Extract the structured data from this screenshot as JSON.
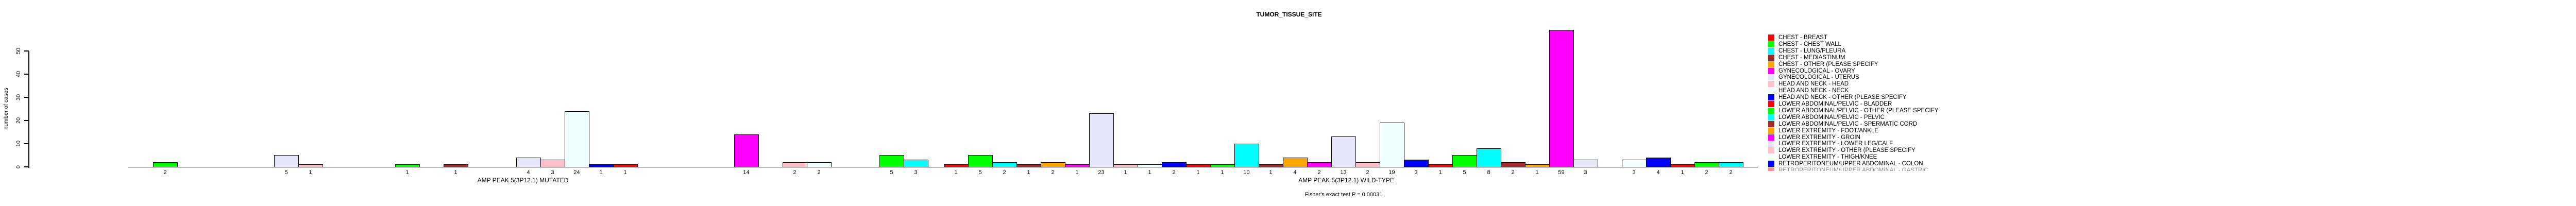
{
  "title": "TUMOR_TISSUE_SITE",
  "footnote": "Fisher's exact test P = 0.00031",
  "chart_data": {
    "type": "bar",
    "title": "TUMOR_TISSUE_SITE",
    "ylabel": "number of cases",
    "xlabel": "",
    "ylim": [
      0,
      50
    ],
    "yticks": [
      0,
      10,
      20,
      30,
      40,
      50
    ],
    "grid": false,
    "legend_position": "right-of-plot, clipped at plot baseline",
    "palette_cycle": [
      "#FF0000",
      "#00FF00",
      "#00FFFF",
      "#A52A2A",
      "#FFA500",
      "#FF00FF",
      "#E6E6FA",
      "#FFC0CB",
      "#F0FFFF",
      "#0000FF"
    ],
    "n_slots_per_group": 33,
    "legend": {
      "entries": [
        "CHEST - BREAST",
        "CHEST - CHEST WALL",
        "CHEST - LUNG/PLEURA",
        "CHEST - MEDIASTINUM",
        "CHEST - OTHER (PLEASE SPECIFY",
        "GYNECOLOGICAL - OVARY",
        "GYNECOLOGICAL - UTERUS",
        "HEAD AND NECK - HEAD",
        "HEAD AND NECK - NECK",
        "HEAD AND NECK - OTHER (PLEASE SPECIFY",
        "LOWER ABDOMINAL/PELVIC - BLADDER",
        "LOWER ABDOMINAL/PELVIC - OTHER (PLEASE SPECIFY",
        "LOWER ABDOMINAL/PELVIC - PELVIC",
        "LOWER ABDOMINAL/PELVIC - SPERMATIC CORD",
        "LOWER EXTREMITY - FOOT/ANKLE",
        "LOWER EXTREMITY - GROIN",
        "LOWER EXTREMITY - LOWER LEG/CALF",
        "LOWER EXTREMITY - OTHER (PLEASE SPECIFY",
        "LOWER EXTREMITY - THIGH/KNEE",
        "RETROPERITONEUM/UPPER ABDOMINAL - COLON"
      ],
      "partial_last_entry": "RETROPERITONEUM/UPPER ABDOMINAL - GASTRIC"
    },
    "groups": [
      {
        "label": "AMP PEAK 5(3P12.1) MUTATED",
        "values": [
          0,
          2,
          0,
          0,
          0,
          0,
          5,
          1,
          0,
          0,
          0,
          1,
          0,
          1,
          0,
          0,
          4,
          3,
          24,
          1,
          1,
          0,
          0,
          0,
          0,
          14,
          0,
          2,
          2,
          0,
          0,
          5,
          3
        ]
      },
      {
        "label": "AMP PEAK 5(3P12.1) WILD-TYPE",
        "values": [
          1,
          5,
          2,
          1,
          2,
          1,
          23,
          1,
          1,
          2,
          1,
          1,
          10,
          1,
          4,
          2,
          13,
          2,
          19,
          3,
          1,
          5,
          8,
          2,
          1,
          59,
          3,
          0,
          3,
          4,
          1,
          2,
          2
        ]
      }
    ],
    "footnote": "Fisher's exact test P = 0.00031"
  }
}
